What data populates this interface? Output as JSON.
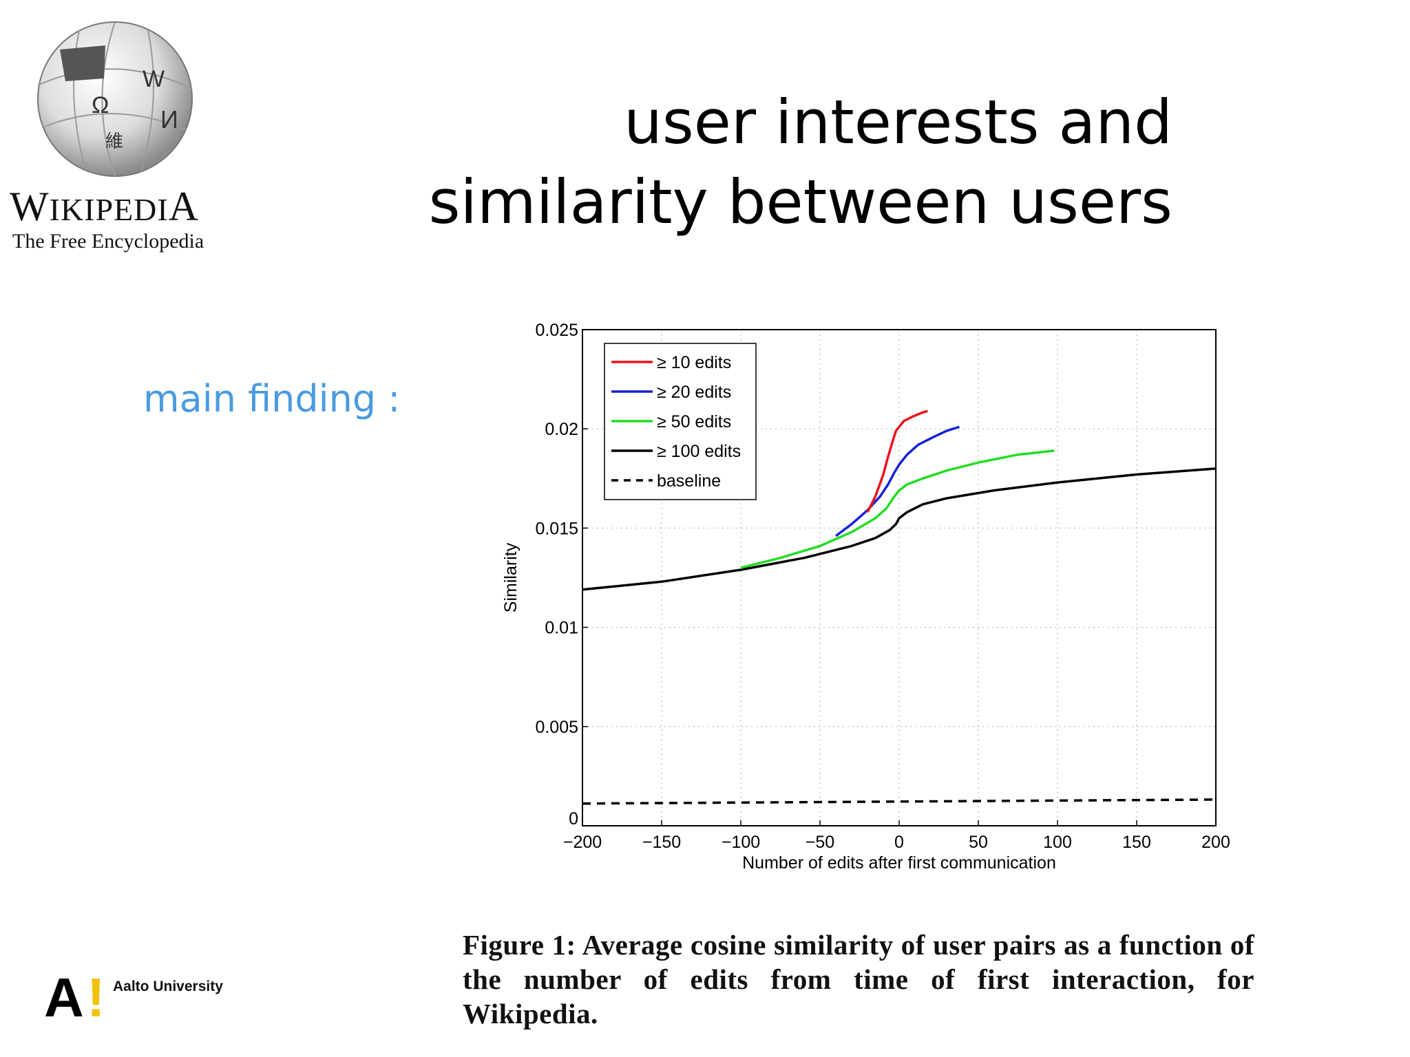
{
  "logo": {
    "name": "Wikipedia",
    "tagline": "The Free Encyclopedia"
  },
  "slide": {
    "title_line1": "user interests and",
    "title_line2": "similarity between users",
    "subtitle": "main finding :"
  },
  "caption": "Figure 1: Average cosine similarity of user pairs as a function of the number of edits from time of first interaction, for Wikipedia.",
  "footer": {
    "institution": "Aalto University",
    "brand_yellow": "#f2c20f"
  },
  "chart_data": {
    "type": "line",
    "title": "",
    "xlabel": "Number of edits after first communication",
    "ylabel": "Similarity",
    "xlim": [
      -200,
      200
    ],
    "ylim": [
      0,
      0.025
    ],
    "x_ticks": [
      -200,
      -150,
      -100,
      -50,
      0,
      50,
      100,
      150,
      200
    ],
    "x_tick_labels": [
      "−200",
      "−150",
      "−100",
      "−50",
      "0",
      "50",
      "100",
      "150",
      "200"
    ],
    "y_ticks": [
      0,
      0.005,
      0.01,
      0.015,
      0.02,
      0.025
    ],
    "y_tick_labels": [
      "0",
      "0.005",
      "0.01",
      "0.015",
      "0.02",
      "0.025"
    ],
    "grid": true,
    "legend_position": "top-left",
    "series": [
      {
        "name": "≥ 10 edits",
        "color": "#e8141c",
        "dash": false,
        "points": [
          [
            -20,
            0.0158
          ],
          [
            -15,
            0.0166
          ],
          [
            -10,
            0.0177
          ],
          [
            -7,
            0.0186
          ],
          [
            -4,
            0.0194
          ],
          [
            -2,
            0.0199
          ],
          [
            0,
            0.0201
          ],
          [
            3,
            0.0204
          ],
          [
            8,
            0.0206
          ],
          [
            14,
            0.0208
          ],
          [
            18,
            0.0209
          ]
        ]
      },
      {
        "name": "≥ 20 edits",
        "color": "#1622d8",
        "dash": false,
        "points": [
          [
            -40,
            0.0146
          ],
          [
            -30,
            0.0152
          ],
          [
            -20,
            0.0159
          ],
          [
            -12,
            0.0166
          ],
          [
            -7,
            0.0172
          ],
          [
            -3,
            0.0178
          ],
          [
            0,
            0.0182
          ],
          [
            5,
            0.0187
          ],
          [
            12,
            0.0192
          ],
          [
            22,
            0.0196
          ],
          [
            30,
            0.0199
          ],
          [
            38,
            0.0201
          ]
        ]
      },
      {
        "name": "≥ 50 edits",
        "color": "#22dd22",
        "dash": false,
        "points": [
          [
            -100,
            0.013
          ],
          [
            -75,
            0.0135
          ],
          [
            -50,
            0.0141
          ],
          [
            -30,
            0.0148
          ],
          [
            -15,
            0.0155
          ],
          [
            -8,
            0.016
          ],
          [
            -3,
            0.0166
          ],
          [
            0,
            0.0169
          ],
          [
            5,
            0.0172
          ],
          [
            15,
            0.0175
          ],
          [
            30,
            0.0179
          ],
          [
            50,
            0.0183
          ],
          [
            75,
            0.0187
          ],
          [
            98,
            0.0189
          ]
        ]
      },
      {
        "name": "≥ 100 edits",
        "color": "#000000",
        "dash": false,
        "points": [
          [
            -200,
            0.0119
          ],
          [
            -150,
            0.0123
          ],
          [
            -100,
            0.0129
          ],
          [
            -60,
            0.0135
          ],
          [
            -30,
            0.0141
          ],
          [
            -15,
            0.0145
          ],
          [
            -6,
            0.0149
          ],
          [
            -2,
            0.0152
          ],
          [
            0,
            0.0155
          ],
          [
            5,
            0.0158
          ],
          [
            15,
            0.0162
          ],
          [
            30,
            0.0165
          ],
          [
            60,
            0.0169
          ],
          [
            100,
            0.0173
          ],
          [
            150,
            0.0177
          ],
          [
            200,
            0.018
          ]
        ]
      },
      {
        "name": "baseline",
        "color": "#000000",
        "dash": true,
        "points": [
          [
            -200,
            0.00112
          ],
          [
            0,
            0.00122
          ],
          [
            200,
            0.00132
          ]
        ]
      }
    ]
  }
}
